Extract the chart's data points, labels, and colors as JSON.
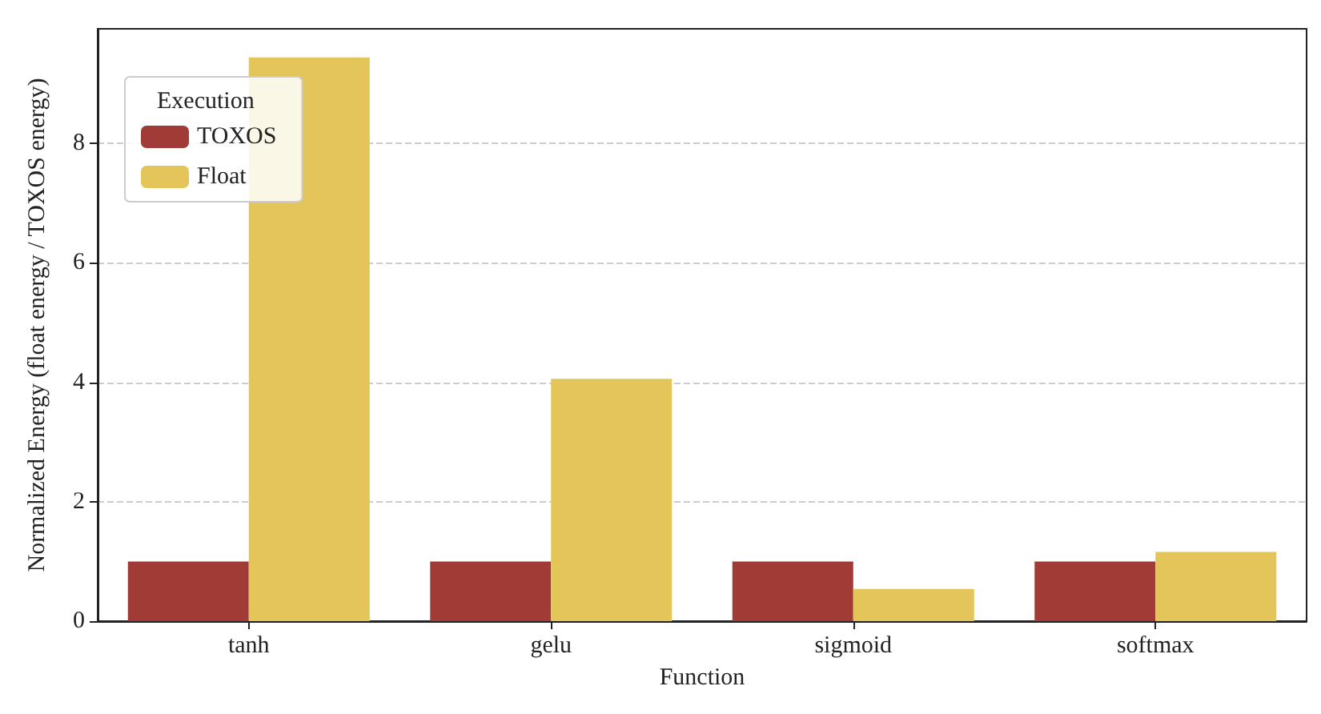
{
  "chart_data": {
    "type": "bar",
    "xlabel": "Function",
    "ylabel": "Normalized Energy (float energy / TOXOS energy)",
    "legend_title": "Execution",
    "categories": [
      "tanh",
      "gelu",
      "sigmoid",
      "softmax"
    ],
    "series": [
      {
        "name": "TOXOS",
        "color": "#a03c35",
        "values": [
          1,
          1,
          1,
          1
        ]
      },
      {
        "name": "Float",
        "color": "#e3c55a",
        "values": [
          9.44,
          4.06,
          0.54,
          1.16
        ]
      }
    ],
    "ylim": [
      0,
      9.92
    ],
    "yticks": [
      0,
      2,
      4,
      6,
      8
    ],
    "grid": "y",
    "legend": "top left"
  }
}
